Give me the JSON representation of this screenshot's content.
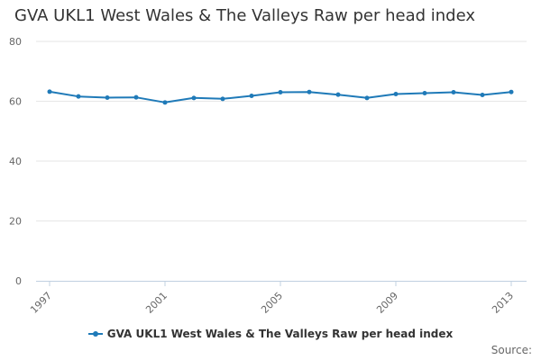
{
  "title": "GVA UKL1 West Wales & The Valleys Raw per head index",
  "credits": "Source:",
  "colors": {
    "series": "#1f7ab8",
    "grid": "#e6e6e6",
    "axis_text": "#666666"
  },
  "chart_data": {
    "type": "line",
    "title": "GVA UKL1 West Wales & The Valleys Raw per head index",
    "xlabel": "",
    "ylabel": "",
    "x": [
      1997,
      1998,
      1999,
      2000,
      2001,
      2002,
      2003,
      2004,
      2005,
      2006,
      2007,
      2008,
      2009,
      2010,
      2011,
      2012,
      2013
    ],
    "x_tick_labels": [
      "1997",
      "2001",
      "2005",
      "2009",
      "2013"
    ],
    "y_tick_labels": [
      "0",
      "20",
      "40",
      "60",
      "80"
    ],
    "ylim": [
      0,
      80
    ],
    "grid": true,
    "legend_position": "bottom",
    "series": [
      {
        "name": "GVA UKL1 West Wales & The Valleys Raw per head index",
        "values": [
          63.2,
          61.6,
          61.2,
          61.3,
          59.6,
          61.1,
          60.8,
          61.8,
          63.0,
          63.1,
          62.2,
          61.1,
          62.4,
          62.7,
          63.0,
          62.1,
          63.1
        ]
      }
    ]
  }
}
